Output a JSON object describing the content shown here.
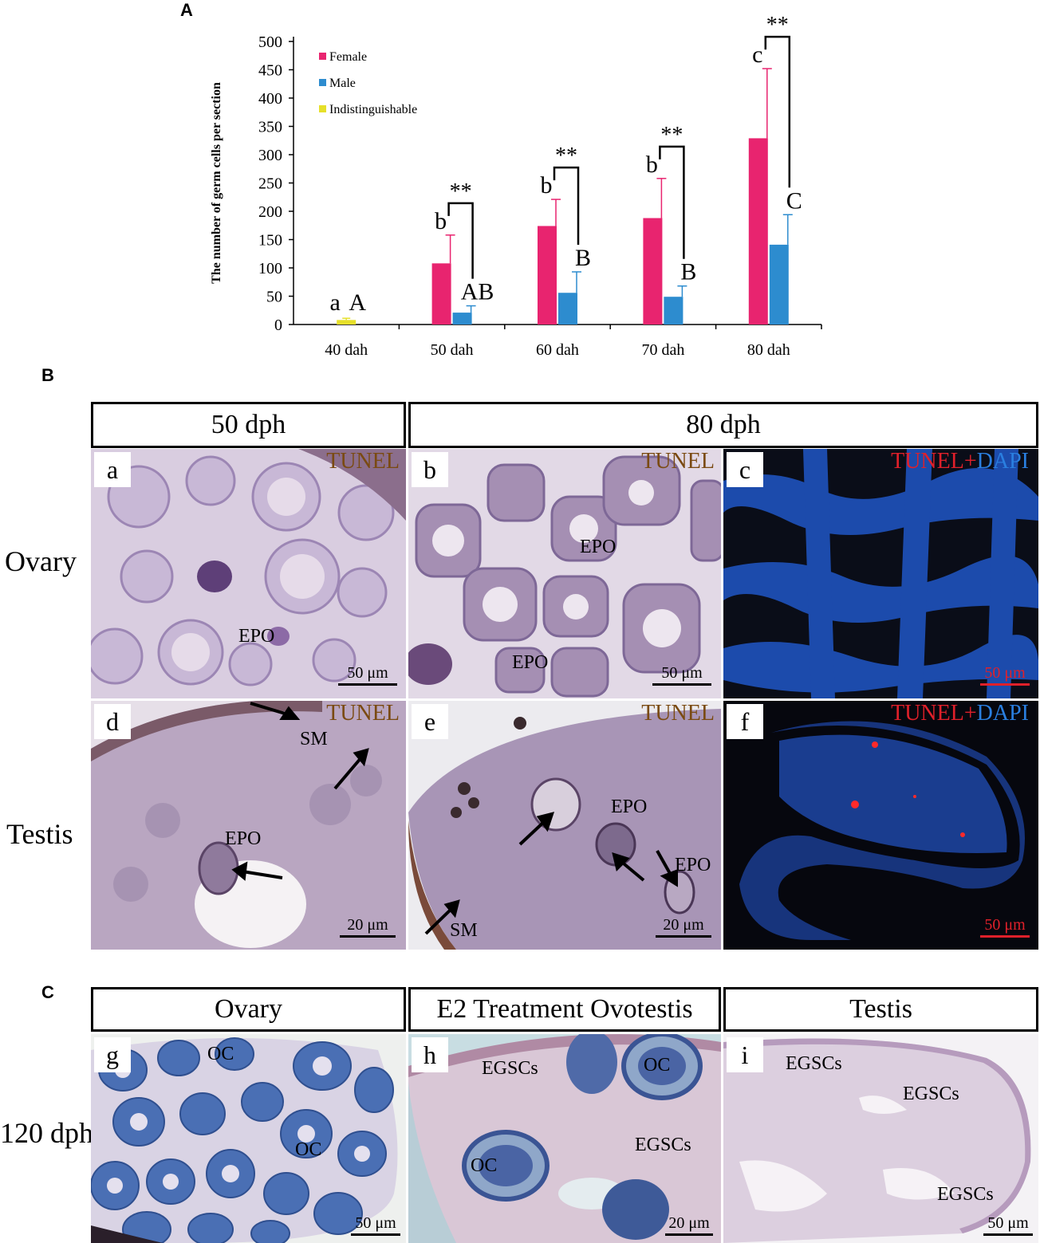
{
  "panels": {
    "A": "A",
    "B": "B",
    "C": "C"
  },
  "chart_data": {
    "type": "bar",
    "categories": [
      "40 dah",
      "50 dah",
      "60 dah",
      "70 dah",
      "80 dah"
    ],
    "ylabel": "The number of germ cells per section",
    "ylim": [
      0,
      500
    ],
    "yticks": [
      0,
      50,
      100,
      150,
      200,
      250,
      300,
      350,
      400,
      450,
      500
    ],
    "legend_position": "top-left",
    "series": [
      {
        "name": "Female",
        "color": "#e8246f",
        "values": [
          null,
          108,
          174,
          188,
          329
        ],
        "errors": [
          null,
          50,
          47,
          70,
          123
        ],
        "letters": [
          "a",
          "b",
          "b",
          "b",
          "c"
        ]
      },
      {
        "name": "Male",
        "color": "#2d8ccf",
        "values": [
          null,
          21,
          56,
          49,
          141
        ],
        "errors": [
          null,
          12,
          37,
          19,
          53
        ],
        "letters": [
          "A",
          "AB",
          "B",
          "B",
          "C"
        ]
      },
      {
        "name": "Indistinguishable",
        "color": "#e6e02a",
        "values": [
          8,
          null,
          null,
          null,
          null
        ],
        "errors": [
          3,
          null,
          null,
          null,
          null
        ],
        "letters": [
          null,
          null,
          null,
          null,
          null
        ]
      }
    ],
    "significance": [
      "",
      "**",
      "**",
      "**",
      "**"
    ]
  },
  "sectionB": {
    "headers": [
      "50 dph",
      "80 dph"
    ],
    "row_labels": [
      "Ovary",
      "Testis"
    ],
    "tiles": {
      "a": {
        "tag": "a",
        "stain": "TUNEL",
        "labels": [
          "EPO"
        ],
        "scale": "50 μm"
      },
      "b": {
        "tag": "b",
        "stain": "TUNEL",
        "labels": [
          "EPO",
          "EPO"
        ],
        "scale": "50 μm"
      },
      "c": {
        "tag": "c",
        "stain_red": "TUNEL+",
        "stain_blue": "DAPI",
        "scale": "50 μm"
      },
      "d": {
        "tag": "d",
        "stain": "TUNEL",
        "labels": [
          "SM",
          "EPO"
        ],
        "scale": "20 μm"
      },
      "e": {
        "tag": "e",
        "stain": "TUNEL",
        "labels": [
          "EPO",
          "EPO",
          "SM"
        ],
        "scale": "20 μm"
      },
      "f": {
        "tag": "f",
        "stain_red": "TUNEL+",
        "stain_blue": "DAPI",
        "scale": "50 μm"
      }
    }
  },
  "sectionC": {
    "headers": [
      "Ovary",
      "E2 Treatment Ovotestis",
      "Testis"
    ],
    "row_label": "120 dph",
    "tiles": {
      "g": {
        "tag": "g",
        "labels": [
          "OC",
          "OC"
        ],
        "scale": "50 μm"
      },
      "h": {
        "tag": "h",
        "labels": [
          "EGSCs",
          "OC",
          "EGSCs",
          "OC"
        ],
        "scale": "20 μm"
      },
      "i": {
        "tag": "i",
        "labels": [
          "EGSCs",
          "EGSCs",
          "EGSCs"
        ],
        "scale": "50 μm"
      }
    }
  }
}
